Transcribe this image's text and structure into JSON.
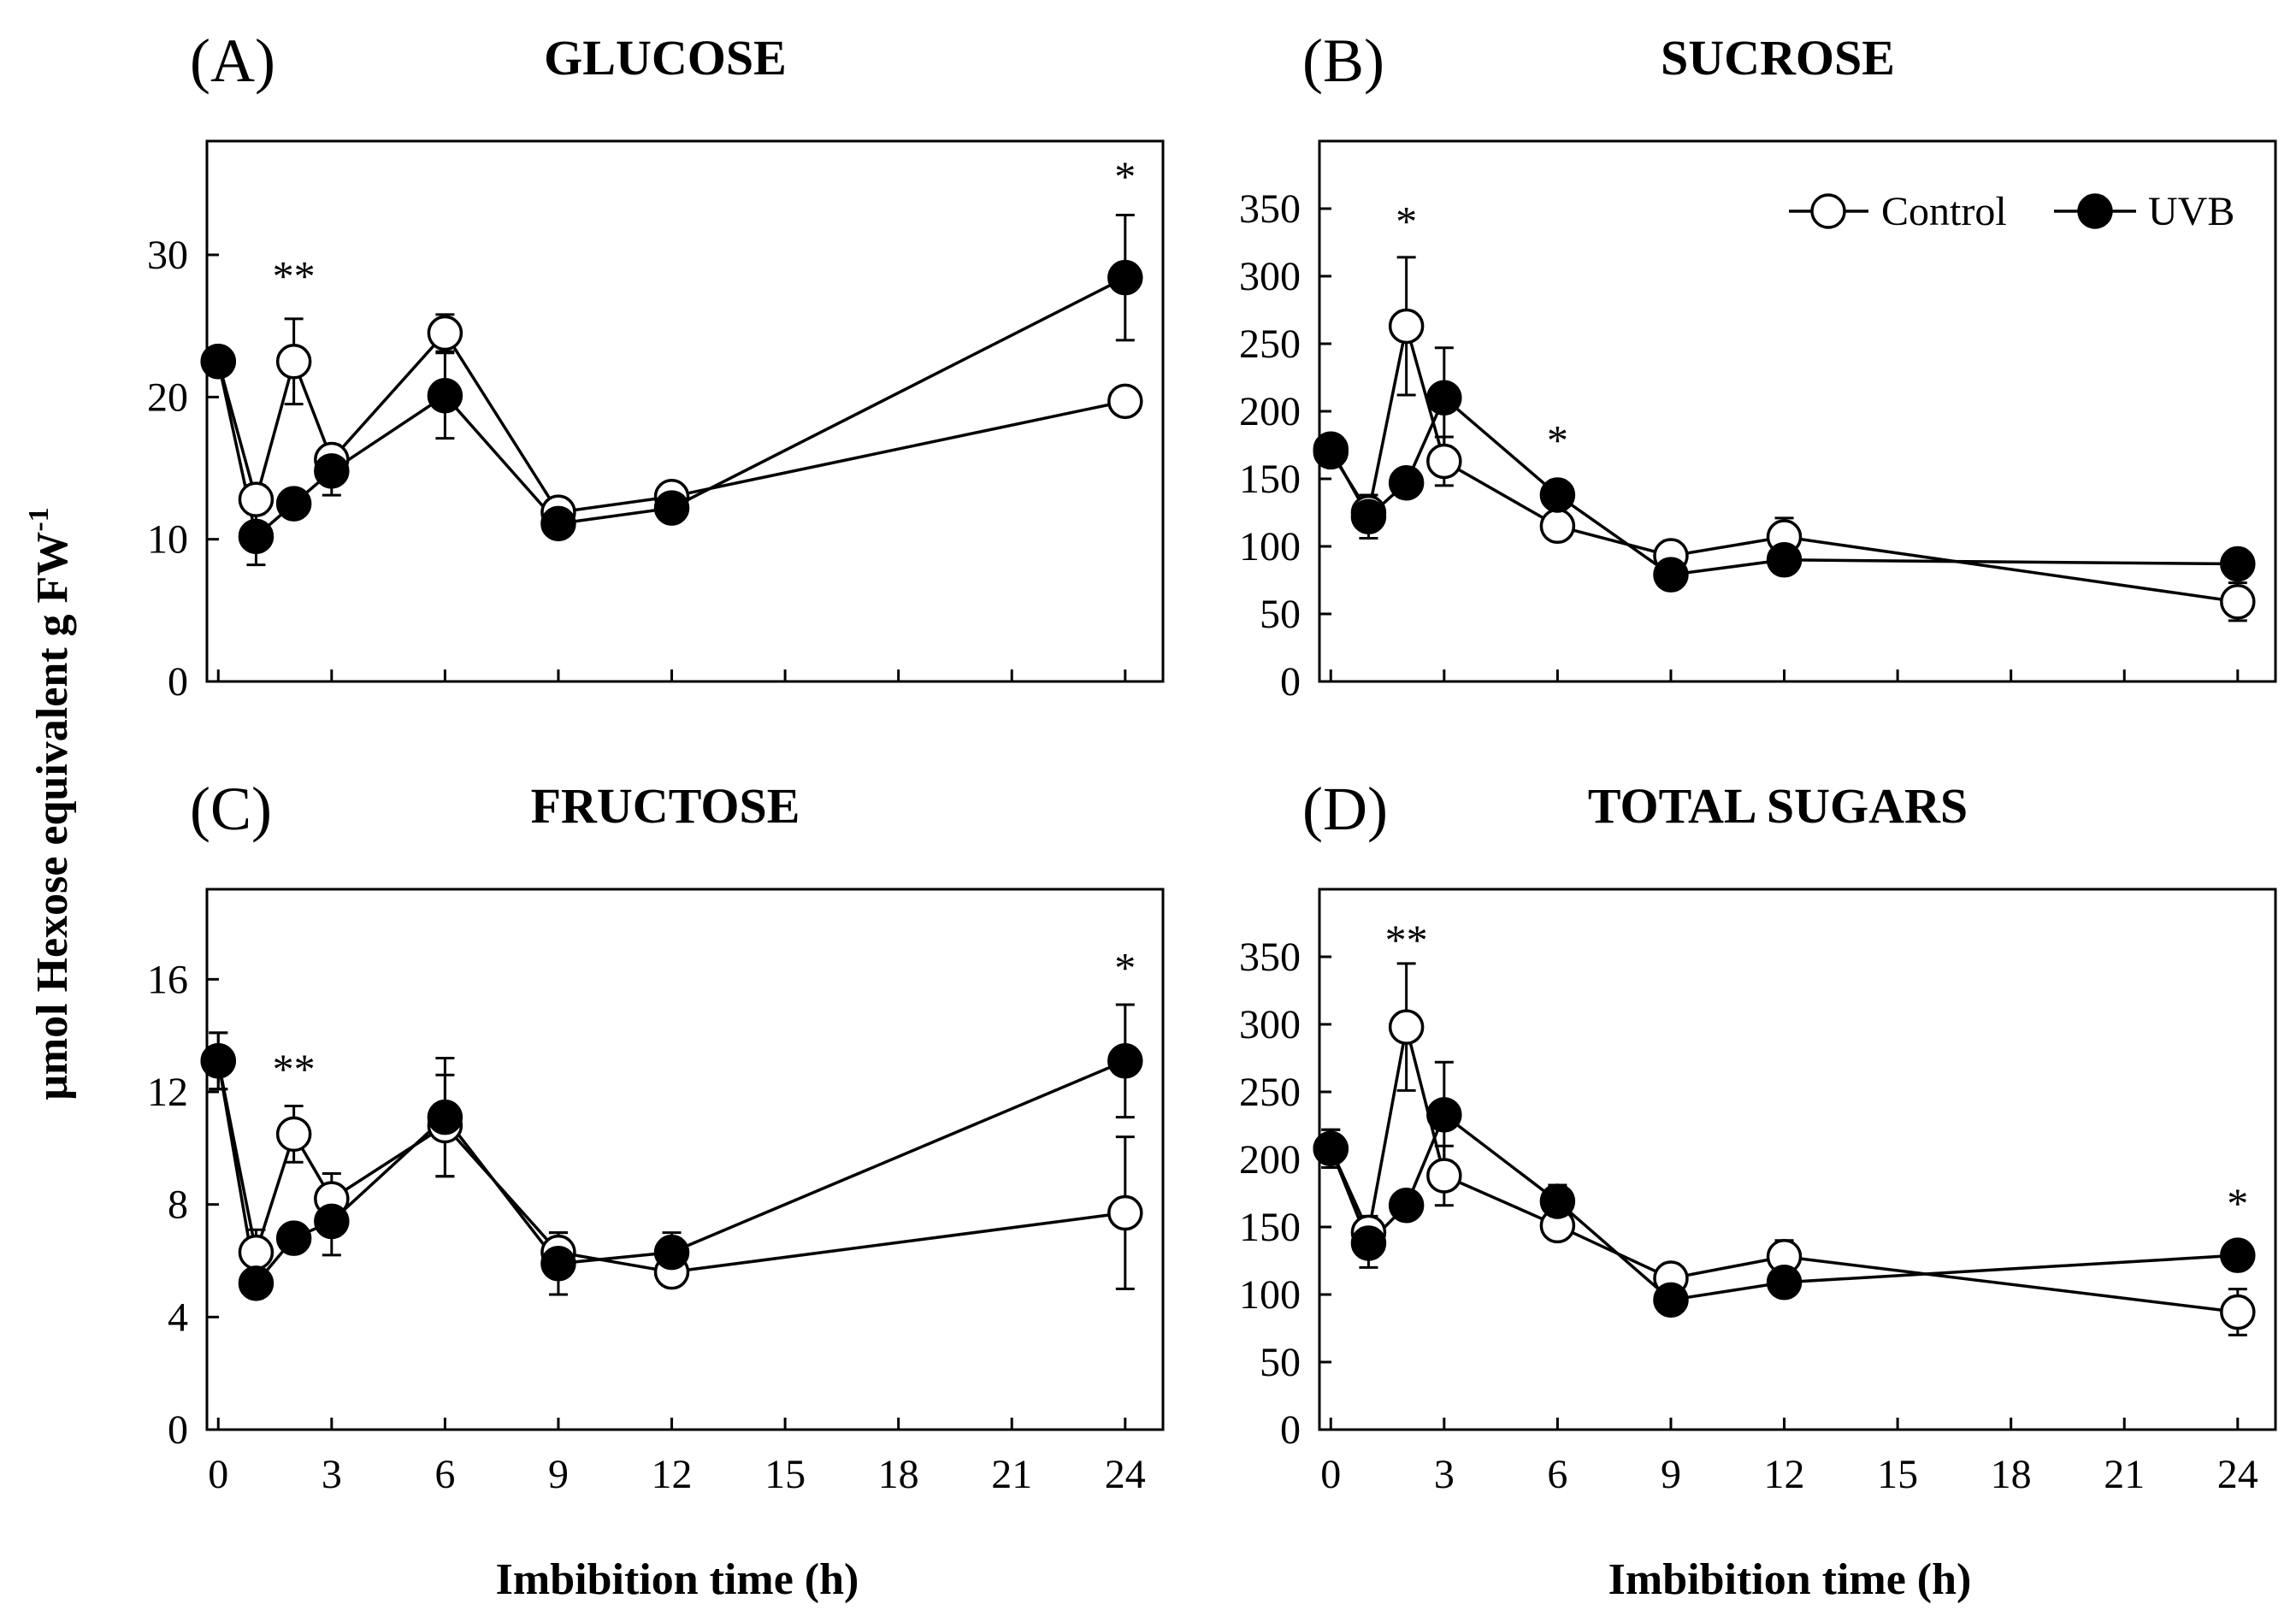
{
  "figure": {
    "ylabel": "μmol Hexose equivalent g FW",
    "ylabel_sup": "-1"
  },
  "legend": {
    "control": "Control",
    "uvb": "UVB"
  },
  "chart_data": [
    {
      "id": "A",
      "letter": "(A)",
      "type": "line",
      "title": "GLUCOSE",
      "xlabel": "",
      "ylabel": "μmol Hexose equivalent g FW-1",
      "xlim": [
        -0.3,
        25
      ],
      "ylim": [
        0,
        38
      ],
      "x_ticks": [],
      "x_tick_labels": [],
      "y_ticks": [
        0,
        10,
        20,
        30
      ],
      "y_tick_labels": [
        "0",
        "10",
        "20",
        "30"
      ],
      "x": [
        0,
        1,
        2,
        3,
        6,
        9,
        12,
        24
      ],
      "series": [
        {
          "name": "Control",
          "fill": "#ffffff",
          "values": [
            22.5,
            12.8,
            22.5,
            15.6,
            24.5,
            11.9,
            13.0,
            19.7
          ],
          "err": [
            0.8,
            1.0,
            3.0,
            1.0,
            1.3,
            0.5,
            0.6,
            0.8
          ]
        },
        {
          "name": "UVB",
          "fill": "#000000",
          "values": [
            22.5,
            10.2,
            12.5,
            14.8,
            20.1,
            11.1,
            12.2,
            28.4
          ],
          "err": [
            0.8,
            2.0,
            0.8,
            1.7,
            3.0,
            0.5,
            0.5,
            4.4
          ]
        }
      ],
      "annotations": [
        {
          "text": "**",
          "x": 2,
          "y": 27.5
        },
        {
          "text": "*",
          "x": 24,
          "y": 34.5
        }
      ]
    },
    {
      "id": "B",
      "letter": "(B)",
      "type": "line",
      "title": "SUCROSE",
      "xlabel": "",
      "ylabel": "",
      "xlim": [
        -0.3,
        25
      ],
      "ylim": [
        0,
        400
      ],
      "x_ticks": [],
      "x_tick_labels": [],
      "y_ticks": [
        0,
        50,
        100,
        150,
        200,
        250,
        300,
        350
      ],
      "y_tick_labels": [
        "0",
        "50",
        "100",
        "150",
        "200",
        "250",
        "300",
        "350"
      ],
      "x": [
        0,
        1,
        2,
        3,
        6,
        9,
        12,
        24
      ],
      "series": [
        {
          "name": "Control",
          "fill": "#ffffff",
          "values": [
            170,
            125,
            263,
            163,
            115,
            93,
            107,
            59
          ],
          "err": [
            8,
            10,
            51,
            18,
            8,
            6,
            14,
            14
          ]
        },
        {
          "name": "UVB",
          "fill": "#000000",
          "values": [
            172,
            122,
            147,
            210,
            138,
            79,
            90,
            87
          ],
          "err": [
            8,
            16,
            8,
            37,
            8,
            5,
            6,
            6
          ]
        }
      ],
      "annotations": [
        {
          "text": "*",
          "x": 2,
          "y": 330
        },
        {
          "text": "*",
          "x": 6,
          "y": 168
        }
      ]
    },
    {
      "id": "C",
      "letter": "(C)",
      "type": "line",
      "title": "FRUCTOSE",
      "xlabel": "Imbibition time (h)",
      "ylabel": "",
      "xlim": [
        -0.3,
        25
      ],
      "ylim": [
        0,
        19.2
      ],
      "x_ticks": [
        0,
        3,
        6,
        9,
        12,
        15,
        18,
        21,
        24
      ],
      "x_tick_labels": [
        "0",
        "3",
        "6",
        "9",
        "12",
        "15",
        "18",
        "21",
        "24"
      ],
      "y_ticks": [
        0,
        4,
        8,
        12,
        16
      ],
      "y_tick_labels": [
        "0",
        "4",
        "8",
        "12",
        "16"
      ],
      "x": [
        0,
        1,
        2,
        3,
        6,
        9,
        12,
        24
      ],
      "series": [
        {
          "name": "Control",
          "fill": "#ffffff",
          "values": [
            13.1,
            6.3,
            10.5,
            8.2,
            10.8,
            6.3,
            5.6,
            7.7
          ],
          "err": [
            1.0,
            0.8,
            1.0,
            0.9,
            1.8,
            0.7,
            0.3,
            2.7
          ]
        },
        {
          "name": "UVB",
          "fill": "#000000",
          "values": [
            13.1,
            5.2,
            6.8,
            7.4,
            11.1,
            5.9,
            6.3,
            13.1
          ],
          "err": [
            1.0,
            0.3,
            0.4,
            1.2,
            2.1,
            1.1,
            0.7,
            2.0
          ]
        }
      ],
      "annotations": [
        {
          "text": "**",
          "x": 2,
          "y": 12.3
        },
        {
          "text": "*",
          "x": 24,
          "y": 15.9
        }
      ]
    },
    {
      "id": "D",
      "letter": "(D)",
      "type": "line",
      "title": "TOTAL SUGARS",
      "xlabel": "Imbibition time (h)",
      "ylabel": "",
      "xlim": [
        -0.3,
        25
      ],
      "ylim": [
        0,
        400
      ],
      "x_ticks": [
        0,
        3,
        6,
        9,
        12,
        15,
        18,
        21,
        24
      ],
      "x_tick_labels": [
        "0",
        "3",
        "6",
        "9",
        "12",
        "15",
        "18",
        "21",
        "24"
      ],
      "y_ticks": [
        0,
        50,
        100,
        150,
        200,
        250,
        300,
        350
      ],
      "y_tick_labels": [
        "0",
        "50",
        "100",
        "150",
        "200",
        "250",
        "300",
        "350"
      ],
      "x": [
        0,
        1,
        2,
        3,
        6,
        9,
        12,
        24
      ],
      "series": [
        {
          "name": "Control",
          "fill": "#ffffff",
          "values": [
            208,
            146,
            298,
            188,
            151,
            112,
            128,
            87
          ],
          "err": [
            14,
            12,
            47,
            22,
            9,
            8,
            12,
            17
          ]
        },
        {
          "name": "UVB",
          "fill": "#000000",
          "values": [
            208,
            138,
            166,
            233,
            169,
            96,
            109,
            129
          ],
          "err": [
            14,
            18,
            8,
            39,
            12,
            10,
            7,
            6
          ]
        }
      ],
      "annotations": [
        {
          "text": "**",
          "x": 2,
          "y": 352
        },
        {
          "text": "*",
          "x": 24,
          "y": 157
        }
      ]
    }
  ]
}
